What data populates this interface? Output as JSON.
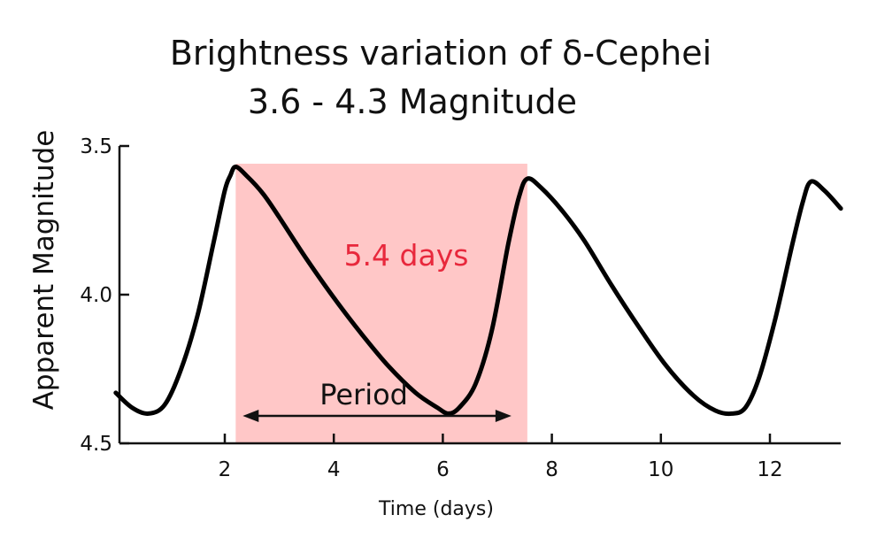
{
  "chart_data": {
    "type": "line",
    "title": "Brightness variation of δ-Cephei",
    "subtitle": "3.6  -  4.3 Magnitude",
    "xlabel": "Time (days)",
    "ylabel": "Apparent Magnitude",
    "xlim": [
      0,
      13.3
    ],
    "ylim": [
      4.5,
      3.5
    ],
    "y_inverted": true,
    "xticks": [
      2,
      4,
      6,
      8,
      10,
      12
    ],
    "xtick_labels": [
      "2",
      "4",
      "6",
      "8",
      "10",
      "12"
    ],
    "yticks": [
      3.5,
      4.0,
      4.5
    ],
    "ytick_labels": [
      "3.5",
      "4.0",
      "4.5"
    ],
    "grid": false,
    "x": [
      0,
      0.3,
      0.6,
      0.9,
      1.2,
      1.5,
      1.8,
      2.0,
      2.1,
      2.2,
      2.4,
      2.7,
      3.0,
      3.5,
      4.0,
      4.5,
      5.0,
      5.5,
      5.9,
      6.1,
      6.3,
      6.6,
      6.9,
      7.2,
      7.4,
      7.55,
      7.8,
      8.2,
      8.6,
      9.1,
      9.6,
      10.1,
      10.6,
      11.0,
      11.3,
      11.55,
      11.8,
      12.1,
      12.4,
      12.6,
      12.75,
      13.0,
      13.3
    ],
    "y": [
      4.33,
      4.38,
      4.4,
      4.37,
      4.25,
      4.07,
      3.82,
      3.65,
      3.6,
      3.57,
      3.6,
      3.66,
      3.74,
      3.88,
      4.01,
      4.13,
      4.24,
      4.33,
      4.38,
      4.4,
      4.38,
      4.3,
      4.12,
      3.83,
      3.67,
      3.61,
      3.64,
      3.72,
      3.82,
      3.97,
      4.11,
      4.24,
      4.34,
      4.39,
      4.4,
      4.38,
      4.28,
      4.08,
      3.84,
      3.69,
      3.62,
      3.65,
      3.71
    ],
    "shaded_span": [
      2.2,
      7.55
    ],
    "shade_color": "#ffc7c7",
    "period_label": "Period",
    "period_days_label": "5.4 days",
    "annotation_color": "#e8283c",
    "line_color": "#000000"
  }
}
